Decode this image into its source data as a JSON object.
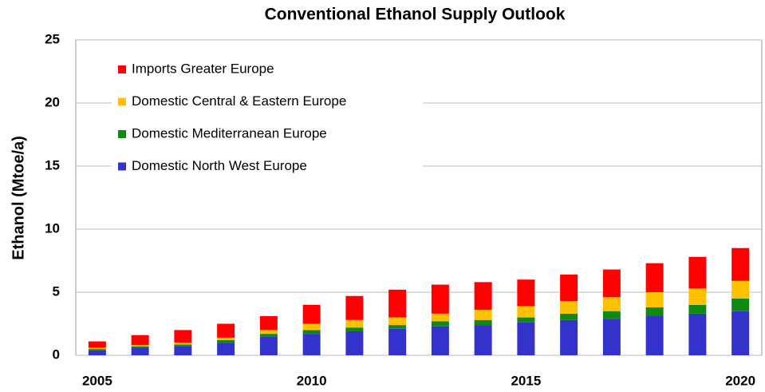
{
  "chart_data": {
    "type": "stacked_bar",
    "title": "Conventional Ethanol Supply Outlook",
    "y_label": "Ethanol (Mtoe/a)",
    "categories": [
      "2005",
      null,
      null,
      null,
      null,
      "2010",
      null,
      null,
      null,
      null,
      "2015",
      null,
      null,
      null,
      null,
      "2020"
    ],
    "series": [
      {
        "name": "Domestic North West Europe",
        "color": "#3333cc",
        "values": [
          0.4,
          0.6,
          0.7,
          1.0,
          1.5,
          1.7,
          1.9,
          2.1,
          2.3,
          2.4,
          2.6,
          2.8,
          2.9,
          3.1,
          3.3,
          3.5
        ]
      },
      {
        "name": "Domestic Mediterranean Europe",
        "color": "#118811",
        "values": [
          0.1,
          0.1,
          0.15,
          0.2,
          0.2,
          0.3,
          0.3,
          0.3,
          0.4,
          0.4,
          0.4,
          0.5,
          0.6,
          0.7,
          0.7,
          1.0
        ]
      },
      {
        "name": "Domestic Central & Eastern Europe",
        "color": "#ffc000",
        "values": [
          0.1,
          0.1,
          0.15,
          0.2,
          0.3,
          0.5,
          0.6,
          0.6,
          0.6,
          0.8,
          0.9,
          1.0,
          1.1,
          1.2,
          1.3,
          1.4
        ]
      },
      {
        "name": "Imports Greater Europe",
        "color": "#ff0000",
        "values": [
          0.5,
          0.8,
          1.0,
          1.1,
          1.1,
          1.5,
          1.9,
          2.2,
          2.3,
          2.2,
          2.1,
          2.1,
          2.2,
          2.3,
          2.5,
          2.6
        ]
      }
    ],
    "ylim": [
      0,
      25
    ],
    "yticks": [
      0,
      5,
      10,
      15,
      20,
      25
    ],
    "grid": true
  }
}
